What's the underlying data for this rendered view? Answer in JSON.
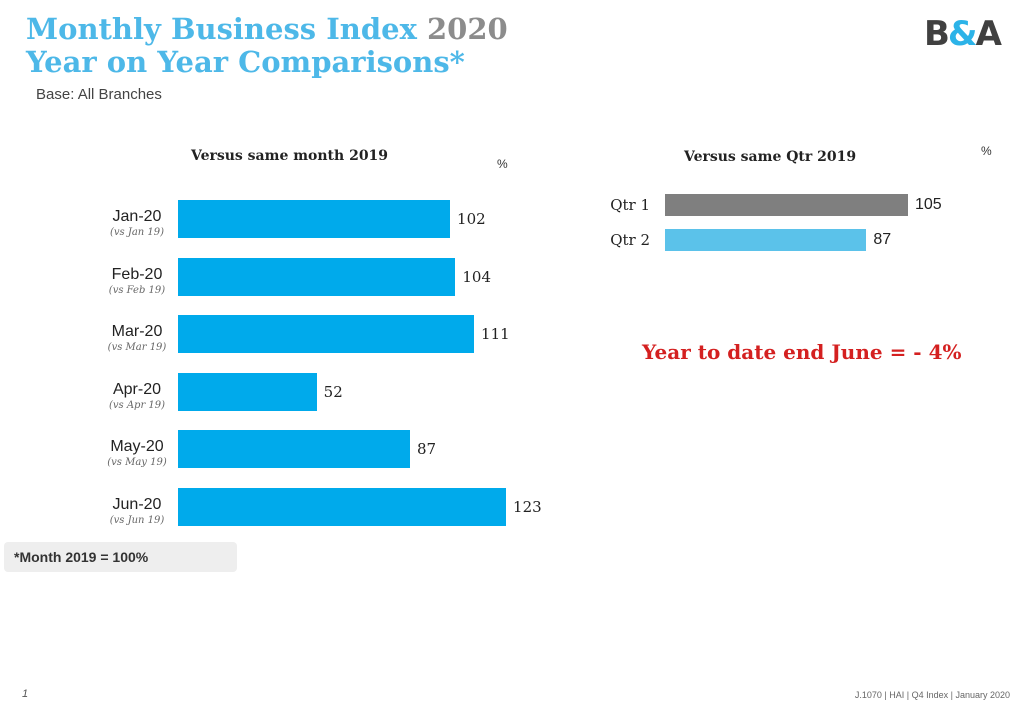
{
  "header": {
    "title_main": "Monthly Business Index",
    "title_year": "2020",
    "subtitle": "Year on Year Comparisons*",
    "base": "Base:  All Branches",
    "logo": {
      "b": "B",
      "amp": "&",
      "a": "A"
    }
  },
  "colors": {
    "title": "#4db8e8",
    "year": "#8c8c8c",
    "monthly_bar": "#00aaeb",
    "qtr1_bar": "#7f7f7f",
    "qtr2_bar": "#5bc2ea",
    "ytd_text": "#d42020"
  },
  "chart_data": [
    {
      "type": "bar",
      "orientation": "horizontal",
      "title": "Versus same month 2019",
      "unit": "%",
      "categories": [
        "Jan-20",
        "Feb-20",
        "Mar-20",
        "Apr-20",
        "May-20",
        "Jun-20"
      ],
      "sublabels": [
        "(vs Jan 19)",
        "(vs Feb 19)",
        "(vs Mar 19)",
        "(vs Apr 19)",
        "(vs May 19)",
        "(vs Jun 19)"
      ],
      "values": [
        102,
        104,
        111,
        52,
        87,
        123
      ],
      "labels": [
        "102",
        "104",
        "111",
        "52",
        "87",
        "123"
      ],
      "xlim": [
        0,
        125
      ]
    },
    {
      "type": "bar",
      "orientation": "horizontal",
      "title": "Versus same Qtr 2019",
      "unit": "%",
      "categories": [
        "Qtr 1",
        "Qtr 2"
      ],
      "values": [
        105,
        87
      ],
      "labels": [
        "105",
        "87"
      ],
      "xlim": [
        0,
        125
      ]
    }
  ],
  "ytd": "Year to date end June = - 4%",
  "footnote": "*Month 2019 = 100%",
  "page_number": "1",
  "footer": "J.1070 | HAI |  Q4 Index | January 2020"
}
